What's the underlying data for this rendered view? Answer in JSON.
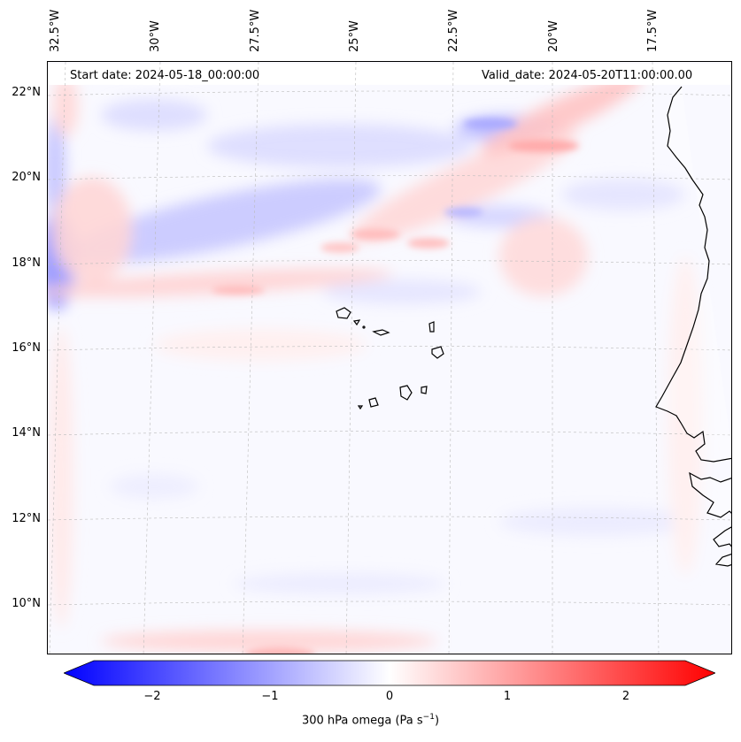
{
  "map": {
    "start_date": "Start date: 2024-05-18_00:00:00",
    "valid_date": "Valid_date: 2024-05-20T11:00:00.00",
    "lon_labels": [
      "32.5°W",
      "30°W",
      "27.5°W",
      "25°W",
      "22.5°W",
      "20°W",
      "17.5°W"
    ],
    "lat_labels": [
      "22°N",
      "20°N",
      "18°N",
      "16°N",
      "14°N",
      "12°N",
      "10°N"
    ],
    "gridlines": true
  },
  "colorbar": {
    "ticks": [
      "−2",
      "−1",
      "0",
      "1",
      "2"
    ],
    "label": "300 hPa omega (Pa s",
    "label_unit_sup": "−1",
    "label_close": ")",
    "range": [
      -2.7,
      2.7
    ],
    "extend": "both",
    "colormap": "bwr",
    "low_color": "#0000ff",
    "mid_color": "#ffffff",
    "high_color": "#ff0000"
  }
}
